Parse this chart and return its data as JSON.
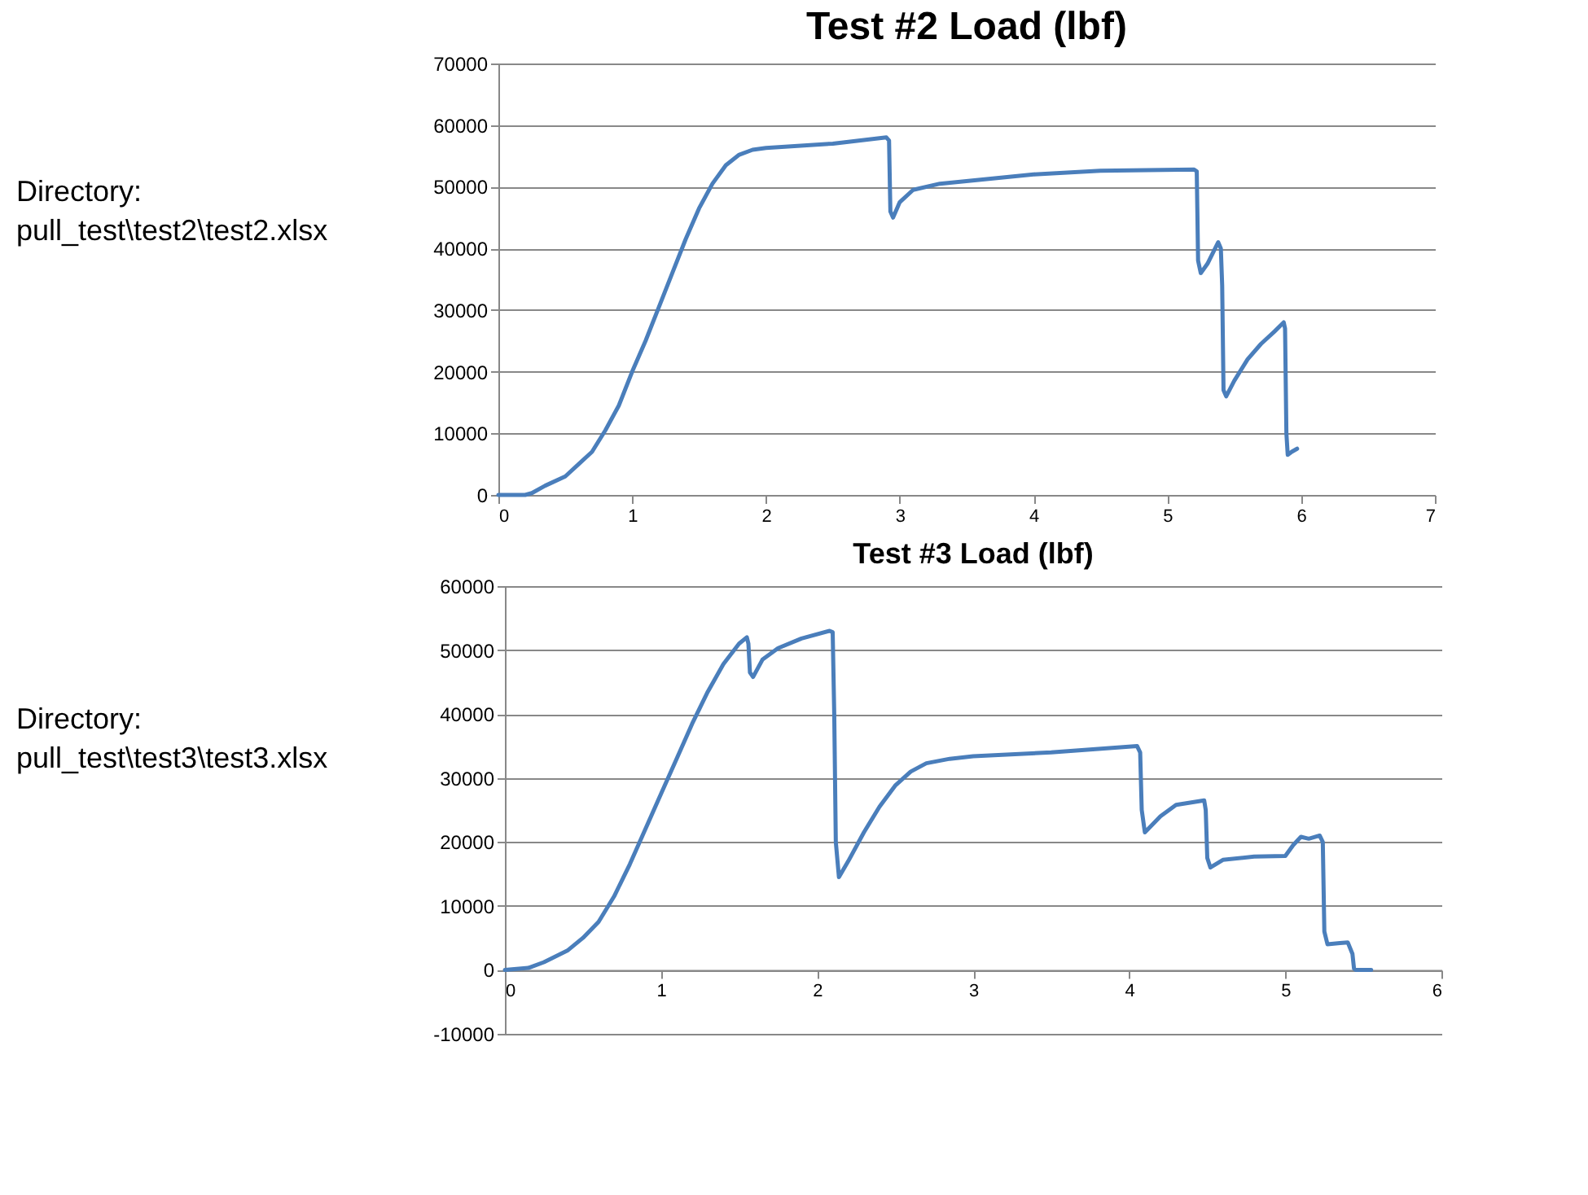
{
  "chart_data": [
    {
      "type": "line",
      "title": "Test #2 Load (lbf)",
      "annotations": [
        "Directory:\npull_test\\test2\\test2.xlsx"
      ],
      "xlim": [
        0,
        7
      ],
      "xticks": [
        0,
        1,
        2,
        3,
        4,
        5,
        6,
        7
      ],
      "ylim": [
        0,
        70000
      ],
      "yticks": [
        0,
        10000,
        20000,
        30000,
        40000,
        50000,
        60000,
        70000
      ],
      "grid": "y",
      "marker": "none",
      "line_style": "solid",
      "series": [
        {
          "color": "#4a7ebb",
          "x": [
            0,
            0.2,
            0.25,
            0.35,
            0.5,
            0.6,
            0.7,
            0.8,
            0.9,
            1.0,
            1.1,
            1.2,
            1.3,
            1.4,
            1.5,
            1.6,
            1.7,
            1.8,
            1.9,
            2.0,
            2.5,
            2.9,
            2.92,
            2.93,
            2.95,
            3.0,
            3.1,
            3.3,
            4.0,
            4.5,
            5.2,
            5.22,
            5.23,
            5.25,
            5.3,
            5.38,
            5.4,
            5.41,
            5.42,
            5.44,
            5.5,
            5.6,
            5.7,
            5.8,
            5.87,
            5.88,
            5.89,
            5.9,
            5.93,
            5.97
          ],
          "values": [
            0,
            0,
            300,
            1500,
            3000,
            5000,
            7000,
            10500,
            14500,
            20000,
            25000,
            30500,
            36000,
            41500,
            46500,
            50500,
            53500,
            55200,
            56000,
            56300,
            57000,
            58000,
            57500,
            46000,
            45000,
            47500,
            49500,
            50500,
            52000,
            52600,
            52800,
            52500,
            38000,
            36000,
            37500,
            41000,
            40000,
            34000,
            17000,
            16000,
            18500,
            22000,
            24500,
            26500,
            28000,
            27000,
            10000,
            6500,
            7000,
            7500
          ]
        }
      ]
    },
    {
      "type": "line",
      "title": "Test #3 Load (lbf)",
      "annotations": [
        "Directory:\npull_test\\test3\\test3.xlsx"
      ],
      "xlim": [
        0,
        6
      ],
      "xticks": [
        0,
        1,
        2,
        3,
        4,
        5,
        6
      ],
      "ylim": [
        -10000,
        60000
      ],
      "yticks": [
        -10000,
        0,
        10000,
        20000,
        30000,
        40000,
        50000,
        60000
      ],
      "grid": "y",
      "marker": "none",
      "line_style": "solid",
      "series": [
        {
          "color": "#4a7ebb",
          "x": [
            0,
            0.15,
            0.25,
            0.4,
            0.5,
            0.6,
            0.7,
            0.8,
            0.9,
            1.0,
            1.1,
            1.2,
            1.3,
            1.4,
            1.5,
            1.55,
            1.56,
            1.57,
            1.59,
            1.65,
            1.75,
            1.9,
            2.08,
            2.1,
            2.11,
            2.12,
            2.14,
            2.2,
            2.3,
            2.4,
            2.5,
            2.6,
            2.7,
            2.85,
            3.0,
            3.5,
            4.05,
            4.07,
            4.08,
            4.1,
            4.2,
            4.3,
            4.48,
            4.49,
            4.5,
            4.52,
            4.6,
            4.8,
            5.0,
            5.05,
            5.1,
            5.15,
            5.22,
            5.24,
            5.25,
            5.27,
            5.35,
            5.4,
            5.43,
            5.44,
            5.45,
            5.55
          ],
          "values": [
            0,
            300,
            1200,
            3000,
            5000,
            7500,
            11500,
            16500,
            22000,
            27500,
            33000,
            38500,
            43500,
            47800,
            51000,
            52000,
            51000,
            46500,
            45800,
            48500,
            50300,
            51800,
            53000,
            52800,
            40000,
            20000,
            14500,
            17000,
            21500,
            25500,
            28800,
            31000,
            32300,
            33000,
            33400,
            34000,
            35000,
            34000,
            25000,
            21500,
            24000,
            25800,
            26500,
            25000,
            17500,
            16000,
            17200,
            17700,
            17800,
            19500,
            20800,
            20500,
            21000,
            20000,
            6000,
            4000,
            4200,
            4300,
            2500,
            200,
            0,
            0
          ]
        }
      ]
    }
  ]
}
